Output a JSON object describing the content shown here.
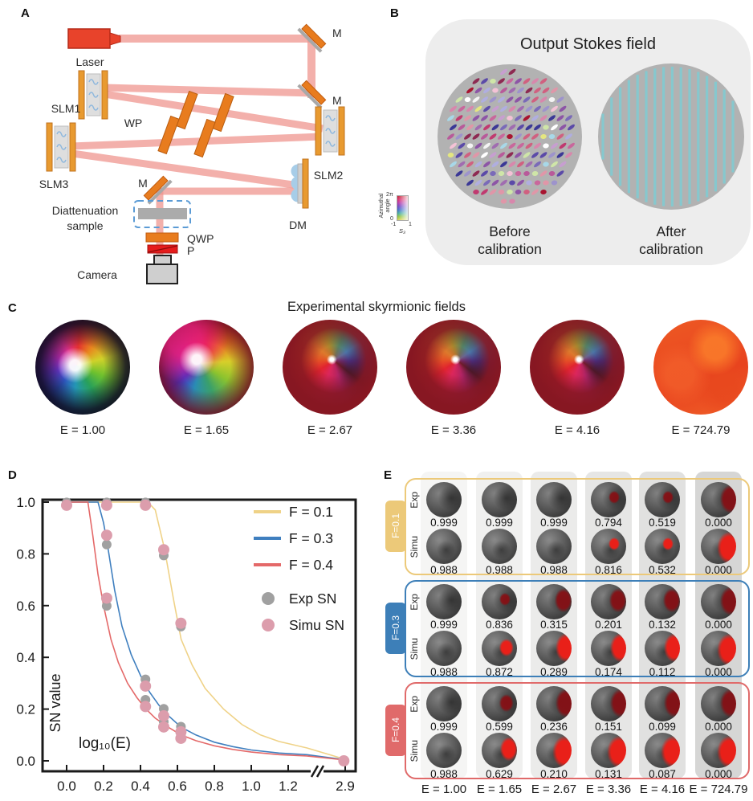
{
  "panel_labels": {
    "a": "A",
    "b": "B",
    "c": "C",
    "d": "D",
    "e": "E"
  },
  "setup": {
    "laser": "Laser",
    "slm1": "SLM1",
    "slm2": "SLM2",
    "slm3": "SLM3",
    "wp": "WP",
    "dm": "DM",
    "mirror1": "M",
    "mirror2": "M",
    "mirror3": "M",
    "sample_line1": "Diattenuation",
    "sample_line2": "sample",
    "qwp": "QWP",
    "p": "P",
    "camera": "Camera"
  },
  "stokes": {
    "title": "Output Stokes field",
    "before_line1": "Before",
    "before_line2": "calibration",
    "after_line1": "After",
    "after_line2": "calibration",
    "colorbar": {
      "axis_label_line1": "Azimuthal",
      "axis_label_line2": "angle",
      "y_top": "2π",
      "y_bottom": "0",
      "x_left": "-1",
      "x_right": "1",
      "x_title": "S₃"
    }
  },
  "skyrmion": {
    "title": "Experimental skyrmionic fields",
    "labels": [
      "E = 1.00",
      "E = 1.65",
      "E = 2.67",
      "E = 3.36",
      "E = 4.16",
      "E = 724.79"
    ]
  },
  "chart_data": {
    "type": "line+scatter",
    "xlabel": "log₁₀(E)",
    "ylabel": "SN value",
    "x_tick_labels": [
      "0.0",
      "0.2",
      "0.4",
      "0.6",
      "0.8",
      "1.0",
      "1.2",
      "2.9"
    ],
    "x_tick_values": [
      0,
      0.2,
      0.4,
      0.6,
      0.8,
      1.0,
      1.2,
      2.9
    ],
    "x_axis_break_after": 1.2,
    "y_tick_labels": [
      "0.0",
      "0.2",
      "0.4",
      "0.6",
      "0.8",
      "1.0"
    ],
    "y_tick_values": [
      0,
      0.2,
      0.4,
      0.6,
      0.8,
      1.0
    ],
    "ylim": [
      0,
      1.05
    ],
    "grid": false,
    "legend_position": "top-right",
    "curves": [
      {
        "name": "F = 0.1",
        "color": "#efd287",
        "points": [
          [
            0,
            1
          ],
          [
            0.44,
            1
          ],
          [
            0.48,
            0.97
          ],
          [
            0.53,
            0.82
          ],
          [
            0.58,
            0.62
          ],
          [
            0.62,
            0.47
          ],
          [
            0.68,
            0.37
          ],
          [
            0.75,
            0.28
          ],
          [
            0.85,
            0.2
          ],
          [
            0.95,
            0.14
          ],
          [
            1.05,
            0.1
          ],
          [
            1.15,
            0.075
          ],
          [
            1.3,
            0.05
          ],
          [
            2.9,
            0.006
          ]
        ]
      },
      {
        "name": "F = 0.3",
        "color": "#3f7fbf",
        "points": [
          [
            0,
            1
          ],
          [
            0.17,
            1
          ],
          [
            0.2,
            0.92
          ],
          [
            0.22,
            0.84
          ],
          [
            0.26,
            0.66
          ],
          [
            0.3,
            0.52
          ],
          [
            0.35,
            0.41
          ],
          [
            0.4,
            0.33
          ],
          [
            0.45,
            0.265
          ],
          [
            0.5,
            0.215
          ],
          [
            0.55,
            0.175
          ],
          [
            0.62,
            0.13
          ],
          [
            0.7,
            0.1
          ],
          [
            0.8,
            0.072
          ],
          [
            0.9,
            0.055
          ],
          [
            1.0,
            0.042
          ],
          [
            1.15,
            0.03
          ],
          [
            1.3,
            0.024
          ],
          [
            2.9,
            0.004
          ]
        ]
      },
      {
        "name": "F = 0.4",
        "color": "#e46969",
        "points": [
          [
            0,
            1
          ],
          [
            0.115,
            1
          ],
          [
            0.14,
            0.88
          ],
          [
            0.17,
            0.72
          ],
          [
            0.2,
            0.6
          ],
          [
            0.24,
            0.47
          ],
          [
            0.28,
            0.38
          ],
          [
            0.33,
            0.3
          ],
          [
            0.38,
            0.245
          ],
          [
            0.43,
            0.2
          ],
          [
            0.48,
            0.165
          ],
          [
            0.55,
            0.13
          ],
          [
            0.62,
            0.1
          ],
          [
            0.7,
            0.078
          ],
          [
            0.8,
            0.058
          ],
          [
            0.9,
            0.044
          ],
          [
            1.0,
            0.034
          ],
          [
            1.15,
            0.024
          ],
          [
            1.3,
            0.019
          ],
          [
            2.9,
            0.003
          ]
        ]
      }
    ],
    "scatter": [
      {
        "name": "Exp SN",
        "color": "#a0a0a0",
        "points": [
          [
            0,
            0.999
          ],
          [
            0.217,
            0.999
          ],
          [
            0.427,
            0.999
          ],
          [
            0.526,
            0.794
          ],
          [
            0.619,
            0.519
          ],
          [
            2.86,
            0.0
          ],
          [
            0.217,
            0.836
          ],
          [
            0.427,
            0.315
          ],
          [
            0.526,
            0.201
          ],
          [
            0.619,
            0.132
          ],
          [
            0.217,
            0.599
          ],
          [
            0.427,
            0.236
          ],
          [
            0.526,
            0.151
          ],
          [
            0.619,
            0.099
          ]
        ]
      },
      {
        "name": "Simu SN",
        "color": "#dc9dac",
        "points": [
          [
            0,
            0.988
          ],
          [
            0.217,
            0.988
          ],
          [
            0.427,
            0.988
          ],
          [
            0.526,
            0.816
          ],
          [
            0.619,
            0.532
          ],
          [
            2.86,
            0.0
          ],
          [
            0.217,
            0.872
          ],
          [
            0.427,
            0.289
          ],
          [
            0.526,
            0.174
          ],
          [
            0.619,
            0.112
          ],
          [
            0.217,
            0.629
          ],
          [
            0.427,
            0.21
          ],
          [
            0.526,
            0.131
          ],
          [
            0.619,
            0.087
          ]
        ]
      }
    ]
  },
  "panel_e": {
    "row_labels": [
      "Exp",
      "Simu"
    ],
    "e_labels": [
      "E = 1.00",
      "E = 1.65",
      "E = 2.67",
      "E = 3.36",
      "E = 4.16",
      "E = 724.79"
    ],
    "groups": [
      {
        "label": "F=0.1",
        "color": "#ecc979",
        "rows": [
          {
            "type": "exp",
            "values": [
              "0.999",
              "0.999",
              "0.999",
              "0.794",
              "0.519",
              "0.000"
            ],
            "red_level": [
              0,
              0,
              0,
              1,
              1,
              4
            ]
          },
          {
            "type": "simu",
            "values": [
              "0.988",
              "0.988",
              "0.988",
              "0.816",
              "0.532",
              "0.000"
            ],
            "red_level": [
              0,
              0,
              0,
              1,
              1,
              5
            ]
          }
        ]
      },
      {
        "label": "F=0.3",
        "color": "#3d7fb8",
        "rows": [
          {
            "type": "exp",
            "values": [
              "0.999",
              "0.836",
              "0.315",
              "0.201",
              "0.132",
              "0.000"
            ],
            "red_level": [
              0,
              1,
              3,
              3,
              3,
              4
            ]
          },
          {
            "type": "simu",
            "values": [
              "0.988",
              "0.872",
              "0.289",
              "0.174",
              "0.112",
              "0.000"
            ],
            "red_level": [
              0,
              2,
              4,
              4,
              4,
              5
            ]
          }
        ]
      },
      {
        "label": "F=0.4",
        "color": "#e06a6a",
        "rows": [
          {
            "type": "exp",
            "values": [
              "0.999",
              "0.599",
              "0.236",
              "0.151",
              "0.099",
              "0.000"
            ],
            "red_level": [
              0,
              2,
              4,
              4,
              4,
              4
            ]
          },
          {
            "type": "simu",
            "values": [
              "0.988",
              "0.629",
              "0.210",
              "0.131",
              "0.087",
              "0.000"
            ],
            "red_level": [
              0,
              3,
              5,
              5,
              5,
              5
            ]
          }
        ]
      }
    ]
  }
}
